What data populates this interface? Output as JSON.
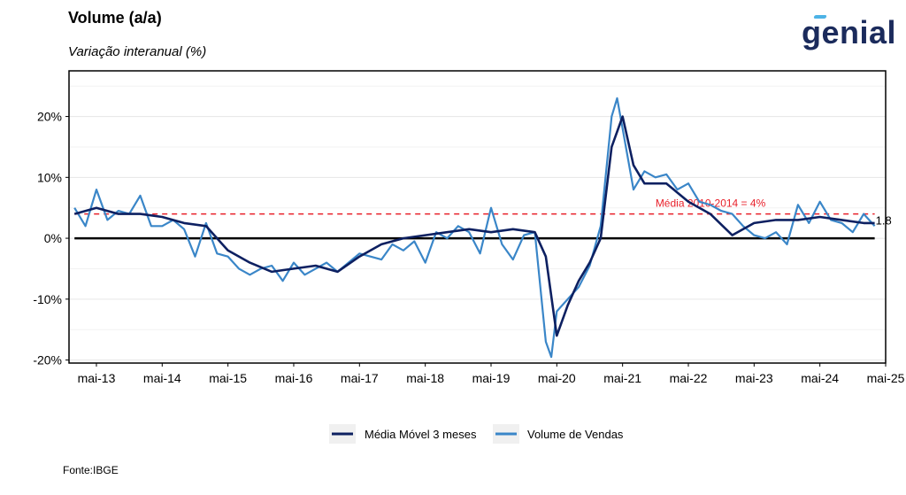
{
  "header": {
    "title": "Volume (a/a)",
    "subtitle": "Variação interanual (%)",
    "brand": "genial"
  },
  "footer": {
    "source": "Fonte:IBGE"
  },
  "colors": {
    "moving_average": "#0d2061",
    "sales_volume": "#3a86c8",
    "reference_line": "#e8202a",
    "zero_line": "#000000"
  },
  "chart_data": {
    "type": "line",
    "title": "Volume (a/a)",
    "subtitle": "Variação interanual (%)",
    "xlabel": "",
    "ylabel": "",
    "ylim": [
      -20.5,
      27.5
    ],
    "yticks": [
      -20,
      -10,
      0,
      10,
      20
    ],
    "ytick_labels": [
      "-20%",
      "-10%",
      "0%",
      "10%",
      "20%"
    ],
    "xlim": [
      "2012-12",
      "2025-05"
    ],
    "xticks": [
      "2013-05",
      "2014-05",
      "2015-05",
      "2016-05",
      "2017-05",
      "2018-05",
      "2019-05",
      "2020-05",
      "2021-05",
      "2022-05",
      "2023-05",
      "2024-05",
      "2025-05"
    ],
    "xtick_labels": [
      "mai-13",
      "mai-14",
      "mai-15",
      "mai-16",
      "mai-17",
      "mai-18",
      "mai-19",
      "mai-20",
      "mai-21",
      "mai-22",
      "mai-23",
      "mai-24",
      "mai-25"
    ],
    "grid": true,
    "legend_position": "bottom",
    "series": [
      {
        "name": "Média Móvel 3 meses",
        "color": "#0d2061",
        "x": [
          "2013-01",
          "2013-05",
          "2013-09",
          "2014-01",
          "2014-05",
          "2014-09",
          "2015-01",
          "2015-05",
          "2015-09",
          "2016-01",
          "2016-05",
          "2016-09",
          "2017-01",
          "2017-05",
          "2017-09",
          "2018-01",
          "2018-05",
          "2018-09",
          "2019-01",
          "2019-05",
          "2019-09",
          "2020-01",
          "2020-03",
          "2020-05",
          "2020-07",
          "2020-09",
          "2020-11",
          "2021-01",
          "2021-03",
          "2021-05",
          "2021-07",
          "2021-09",
          "2022-01",
          "2022-05",
          "2022-09",
          "2023-01",
          "2023-05",
          "2023-09",
          "2024-01",
          "2024-05",
          "2024-09",
          "2025-01",
          "2025-03"
        ],
        "y": [
          4,
          5,
          4,
          4,
          3.5,
          2.5,
          2,
          -2,
          -4,
          -5.5,
          -5,
          -4.5,
          -5.5,
          -3,
          -1,
          0,
          0.5,
          1,
          1.5,
          1,
          1.5,
          1,
          -3,
          -16,
          -11,
          -7,
          -4,
          0,
          15,
          20,
          12,
          9,
          9,
          6,
          4,
          0.5,
          2.5,
          3,
          3,
          3.5,
          3,
          2.5,
          2.5
        ]
      },
      {
        "name": "Volume de Vendas",
        "color": "#3a86c8",
        "x": [
          "2013-01",
          "2013-03",
          "2013-05",
          "2013-07",
          "2013-09",
          "2013-11",
          "2014-01",
          "2014-03",
          "2014-05",
          "2014-07",
          "2014-09",
          "2014-11",
          "2015-01",
          "2015-03",
          "2015-05",
          "2015-07",
          "2015-09",
          "2015-11",
          "2016-01",
          "2016-03",
          "2016-05",
          "2016-07",
          "2016-09",
          "2016-11",
          "2017-01",
          "2017-03",
          "2017-05",
          "2017-07",
          "2017-09",
          "2017-11",
          "2018-01",
          "2018-03",
          "2018-05",
          "2018-07",
          "2018-09",
          "2018-11",
          "2019-01",
          "2019-03",
          "2019-05",
          "2019-07",
          "2019-09",
          "2019-11",
          "2020-01",
          "2020-03",
          "2020-04",
          "2020-05",
          "2020-07",
          "2020-09",
          "2020-11",
          "2021-01",
          "2021-03",
          "2021-04",
          "2021-05",
          "2021-07",
          "2021-09",
          "2021-11",
          "2022-01",
          "2022-03",
          "2022-05",
          "2022-07",
          "2022-09",
          "2022-11",
          "2023-01",
          "2023-03",
          "2023-05",
          "2023-07",
          "2023-09",
          "2023-11",
          "2024-01",
          "2024-03",
          "2024-05",
          "2024-07",
          "2024-09",
          "2024-11",
          "2025-01",
          "2025-03"
        ],
        "y": [
          5,
          2,
          8,
          3,
          4.5,
          4,
          7,
          2,
          2,
          3,
          1.5,
          -3,
          2.5,
          -2.5,
          -3,
          -5,
          -6,
          -5,
          -4.5,
          -7,
          -4,
          -6,
          -5,
          -4,
          -5.5,
          -4,
          -2.5,
          -3,
          -3.5,
          -1,
          -2,
          -0.5,
          -4,
          1,
          0,
          2,
          1,
          -2.5,
          5,
          -1,
          -3.5,
          0.5,
          1,
          -17,
          -19.5,
          -12,
          -10,
          -8,
          -4.5,
          2,
          20,
          23,
          18,
          8,
          11,
          10,
          10.5,
          8,
          9,
          6,
          5.5,
          4.5,
          4,
          2,
          0.5,
          0,
          1,
          -1,
          5.5,
          2.5,
          6,
          3,
          2.5,
          1,
          4,
          2
        ]
      }
    ],
    "reference_line": {
      "y": 4,
      "label": "Média 2010-2014 = 4%"
    },
    "annotations": [
      {
        "text": "1.8",
        "x": "2025-03",
        "y": 1.8
      }
    ]
  }
}
